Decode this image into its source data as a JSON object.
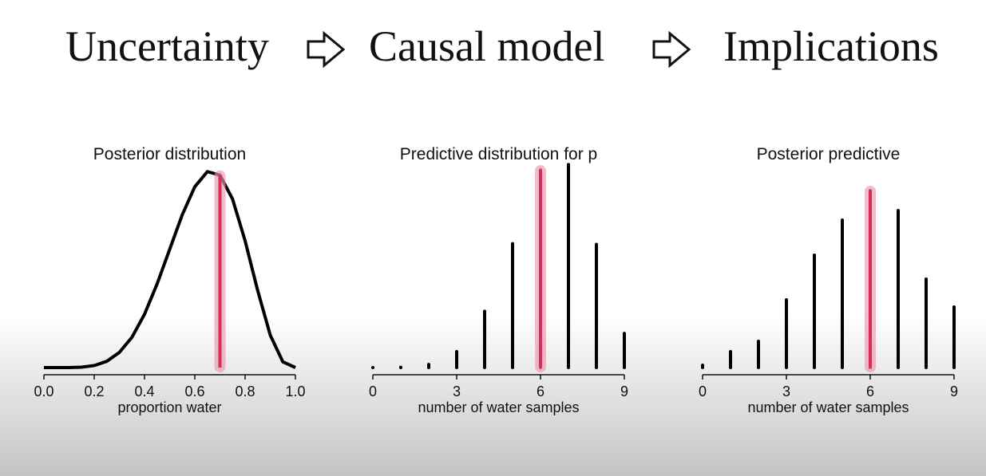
{
  "header": {
    "steps": [
      "Uncertainty",
      "Causal model",
      "Implications"
    ]
  },
  "chart_data": [
    {
      "type": "line",
      "title": "Posterior distribution",
      "x_label": "proportion water",
      "x": [
        0,
        0.05,
        0.1,
        0.15,
        0.2,
        0.25,
        0.3,
        0.35,
        0.4,
        0.45,
        0.5,
        0.55,
        0.6,
        0.65,
        0.7,
        0.75,
        0.8,
        0.85,
        0.9,
        0.95,
        1
      ],
      "values": [
        0,
        0,
        0.0006,
        0.006,
        0.028,
        0.087,
        0.21,
        0.42,
        0.74,
        1.16,
        1.64,
        2.12,
        2.51,
        2.72,
        2.67,
        2.34,
        1.76,
        1.07,
        0.45,
        0.08,
        0
      ],
      "color": "#000000",
      "highlight": 0.7,
      "highlight_color": "#d0305a",
      "xlim": [
        0,
        1
      ],
      "ylim": [
        0,
        2.8
      ],
      "xticks": [
        {
          "value": 0,
          "label": "0.0"
        },
        0.2,
        0.4,
        0.6,
        0.8,
        {
          "value": 1,
          "label": "1.0"
        }
      ]
    },
    {
      "type": "bar",
      "title": "Predictive distribution for p",
      "x_label": "number of water samples",
      "x": [
        0,
        1,
        2,
        3,
        4,
        5,
        6,
        7,
        8,
        9
      ],
      "values": [
        0,
        0.0004,
        0.004,
        0.021,
        0.074,
        0.163,
        0.26,
        0.267,
        0.162,
        0.045
      ],
      "color": "#000000",
      "highlight": 6,
      "highlight_color": "#d0305a",
      "xlim": [
        0,
        9
      ],
      "ylim": [
        0,
        0.28
      ],
      "xticks": [
        0,
        3,
        6,
        9
      ]
    },
    {
      "type": "bar",
      "title": "Posterior predictive",
      "x_label": "number of water samples",
      "x": [
        0,
        1,
        2,
        3,
        4,
        5,
        6,
        7,
        8,
        9
      ],
      "values": [
        0.003,
        0.02,
        0.033,
        0.085,
        0.141,
        0.185,
        0.222,
        0.197,
        0.111,
        0.076
      ],
      "color": "#000000",
      "highlight": 6,
      "highlight_color": "#d0305a",
      "xlim": [
        0,
        9
      ],
      "ylim": [
        0,
        0.25
      ],
      "xticks": [
        0,
        3,
        6,
        9
      ]
    }
  ]
}
